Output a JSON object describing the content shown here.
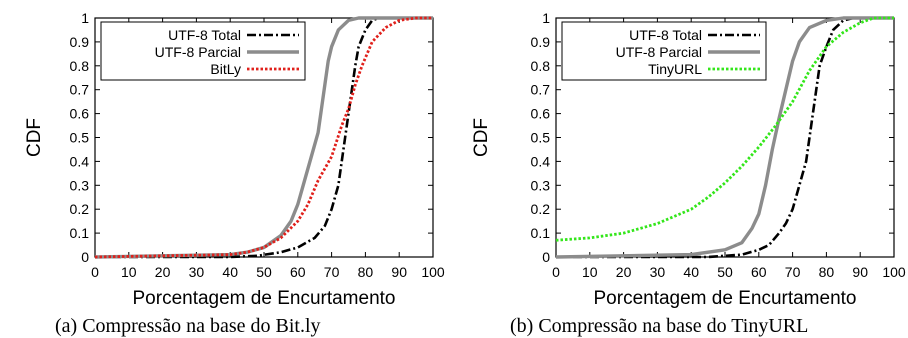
{
  "chart_data": [
    {
      "type": "line",
      "caption": "(a) Compressão na base do Bit.ly",
      "xlabel": "Porcentagem de Encurtamento",
      "ylabel": "CDF",
      "xlim": [
        0,
        100
      ],
      "ylim": [
        0,
        1
      ],
      "xticks": [
        0,
        10,
        20,
        30,
        40,
        50,
        60,
        70,
        80,
        90,
        100
      ],
      "yticks": [
        0,
        0.1,
        0.2,
        0.3,
        0.4,
        0.5,
        0.6,
        0.7,
        0.8,
        0.9,
        1
      ],
      "grid": false,
      "legend_position": "top-left",
      "series": [
        {
          "name": "UTF-8 Total",
          "color": "#000000",
          "style": "dash-dot",
          "points": [
            [
              0,
              0
            ],
            [
              40,
              0
            ],
            [
              48,
              0.005
            ],
            [
              55,
              0.02
            ],
            [
              60,
              0.04
            ],
            [
              65,
              0.08
            ],
            [
              68,
              0.13
            ],
            [
              70,
              0.2
            ],
            [
              72,
              0.3
            ],
            [
              73,
              0.4
            ],
            [
              74,
              0.5
            ],
            [
              75,
              0.6
            ],
            [
              76,
              0.7
            ],
            [
              77,
              0.8
            ],
            [
              78,
              0.88
            ],
            [
              80,
              0.95
            ],
            [
              82,
              0.99
            ],
            [
              84,
              1
            ],
            [
              100,
              1
            ]
          ]
        },
        {
          "name": "UTF-8 Parcial",
          "color": "#8c8c8c",
          "style": "solid",
          "points": [
            [
              0,
              0
            ],
            [
              40,
              0.01
            ],
            [
              45,
              0.02
            ],
            [
              50,
              0.04
            ],
            [
              55,
              0.09
            ],
            [
              58,
              0.15
            ],
            [
              60,
              0.22
            ],
            [
              62,
              0.32
            ],
            [
              64,
              0.42
            ],
            [
              66,
              0.52
            ],
            [
              67,
              0.62
            ],
            [
              68,
              0.72
            ],
            [
              69,
              0.82
            ],
            [
              70,
              0.88
            ],
            [
              72,
              0.95
            ],
            [
              75,
              0.99
            ],
            [
              78,
              1
            ],
            [
              100,
              1
            ]
          ]
        },
        {
          "name": "BitLy",
          "color": "#e0201b",
          "style": "dotted",
          "points": [
            [
              0,
              0
            ],
            [
              40,
              0.01
            ],
            [
              45,
              0.02
            ],
            [
              50,
              0.04
            ],
            [
              55,
              0.08
            ],
            [
              60,
              0.15
            ],
            [
              63,
              0.22
            ],
            [
              66,
              0.32
            ],
            [
              70,
              0.42
            ],
            [
              73,
              0.55
            ],
            [
              75,
              0.62
            ],
            [
              77,
              0.72
            ],
            [
              79,
              0.8
            ],
            [
              82,
              0.9
            ],
            [
              86,
              0.96
            ],
            [
              90,
              0.99
            ],
            [
              95,
              1
            ],
            [
              100,
              1
            ]
          ]
        }
      ]
    },
    {
      "type": "line",
      "caption": "(b) Compressão na base do TinyURL",
      "xlabel": "Porcentagem de Encurtamento",
      "ylabel": "CDF",
      "xlim": [
        0,
        100
      ],
      "ylim": [
        0,
        1
      ],
      "xticks": [
        0,
        10,
        20,
        30,
        40,
        50,
        60,
        70,
        80,
        90,
        100
      ],
      "yticks": [
        0,
        0.1,
        0.2,
        0.3,
        0.4,
        0.5,
        0.6,
        0.7,
        0.8,
        0.9,
        1
      ],
      "grid": false,
      "legend_position": "top-left",
      "series": [
        {
          "name": "UTF-8 Total",
          "color": "#000000",
          "style": "dash-dot",
          "points": [
            [
              0,
              0
            ],
            [
              45,
              0
            ],
            [
              50,
              0.005
            ],
            [
              55,
              0.01
            ],
            [
              60,
              0.03
            ],
            [
              63,
              0.05
            ],
            [
              66,
              0.1
            ],
            [
              68,
              0.14
            ],
            [
              70,
              0.2
            ],
            [
              72,
              0.3
            ],
            [
              74,
              0.4
            ],
            [
              75,
              0.5
            ],
            [
              76,
              0.6
            ],
            [
              77,
              0.7
            ],
            [
              78,
              0.8
            ],
            [
              80,
              0.88
            ],
            [
              82,
              0.95
            ],
            [
              85,
              0.99
            ],
            [
              88,
              1
            ],
            [
              100,
              1
            ]
          ]
        },
        {
          "name": "UTF-8 Parcial",
          "color": "#8c8c8c",
          "style": "solid",
          "points": [
            [
              0,
              0
            ],
            [
              40,
              0.01
            ],
            [
              50,
              0.03
            ],
            [
              55,
              0.06
            ],
            [
              58,
              0.12
            ],
            [
              60,
              0.18
            ],
            [
              62,
              0.3
            ],
            [
              64,
              0.45
            ],
            [
              66,
              0.58
            ],
            [
              68,
              0.7
            ],
            [
              70,
              0.82
            ],
            [
              72,
              0.9
            ],
            [
              75,
              0.96
            ],
            [
              80,
              0.99
            ],
            [
              85,
              1
            ],
            [
              100,
              1
            ]
          ]
        },
        {
          "name": "TinyURL",
          "color": "#33e61a",
          "style": "dotted",
          "points": [
            [
              0,
              0.07
            ],
            [
              10,
              0.08
            ],
            [
              20,
              0.1
            ],
            [
              30,
              0.14
            ],
            [
              40,
              0.2
            ],
            [
              45,
              0.25
            ],
            [
              50,
              0.31
            ],
            [
              55,
              0.38
            ],
            [
              60,
              0.46
            ],
            [
              65,
              0.55
            ],
            [
              70,
              0.65
            ],
            [
              75,
              0.78
            ],
            [
              80,
              0.88
            ],
            [
              85,
              0.94
            ],
            [
              90,
              0.98
            ],
            [
              94,
              1
            ],
            [
              100,
              1
            ]
          ]
        }
      ]
    }
  ]
}
